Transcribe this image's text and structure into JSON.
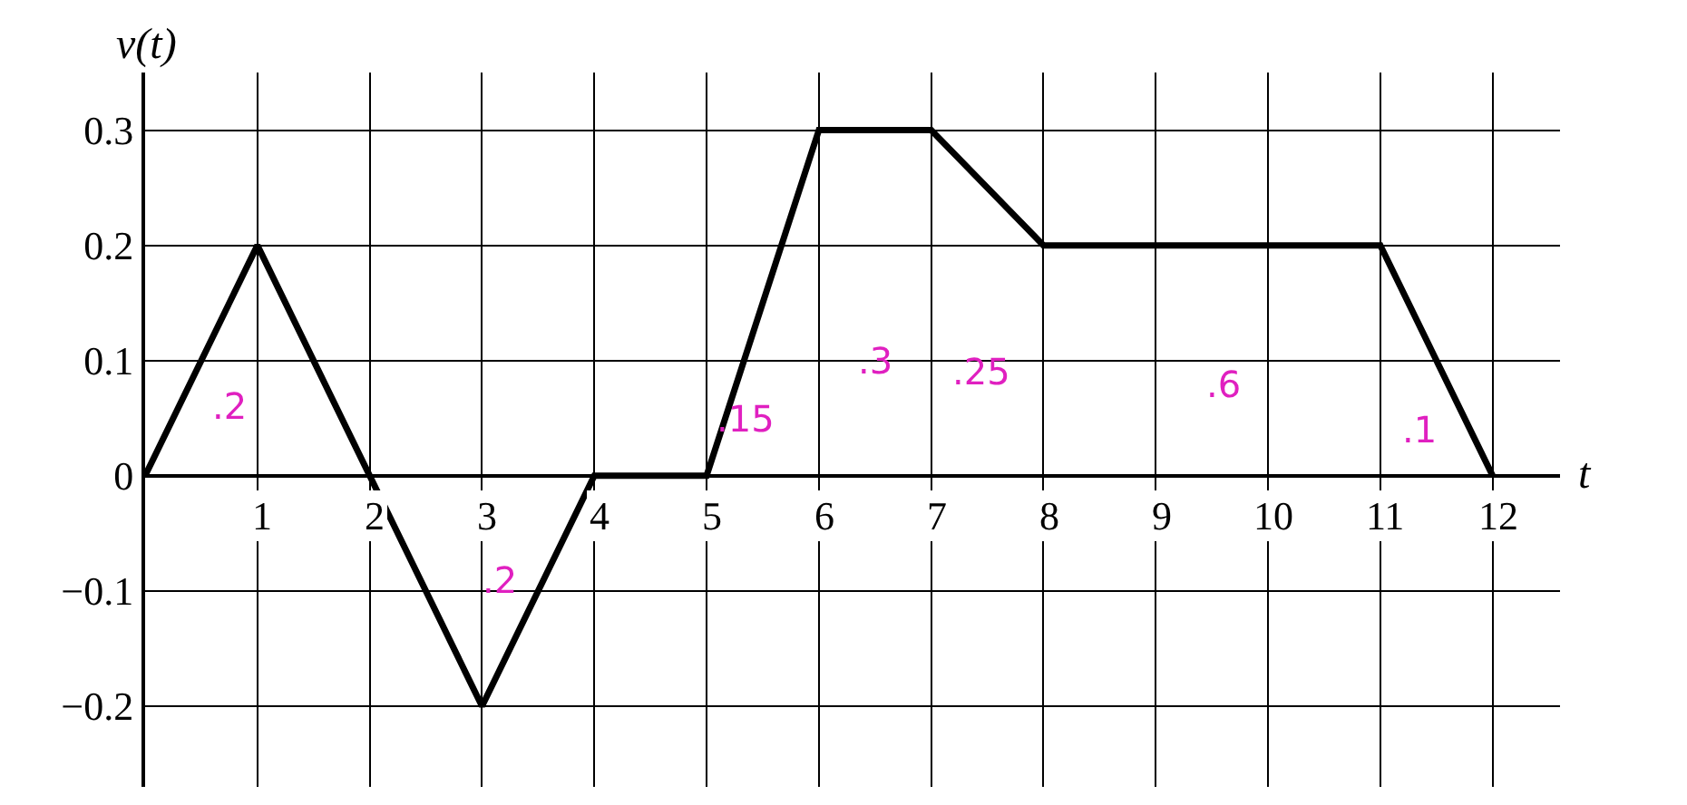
{
  "chart_data": {
    "type": "line",
    "xlabel": "t",
    "ylabel": "v(t)",
    "x": [
      0,
      1,
      2,
      3,
      4,
      5,
      6,
      7,
      8,
      11,
      12
    ],
    "series": [
      {
        "color": "#000000",
        "values": [
          0,
          0.2,
          0,
          -0.2,
          0,
          0,
          0.3,
          0.3,
          0.2,
          0.2,
          0
        ]
      }
    ],
    "xlim": [
      0,
      12.6
    ],
    "ylim": [
      -0.27,
      0.35
    ],
    "xticks": [
      1,
      2,
      3,
      4,
      5,
      6,
      7,
      8,
      9,
      10,
      11,
      12
    ],
    "yticks": [
      {
        "value": -0.2,
        "label": "−0.2"
      },
      {
        "value": -0.1,
        "label": "−0.1"
      },
      0,
      0.1,
      0.2,
      0.3
    ],
    "grid": true,
    "marker": "none",
    "line_style": "solid",
    "annotations": [
      ".2",
      ".2",
      ".15",
      ".3",
      ".25",
      ".6",
      ".1"
    ]
  }
}
